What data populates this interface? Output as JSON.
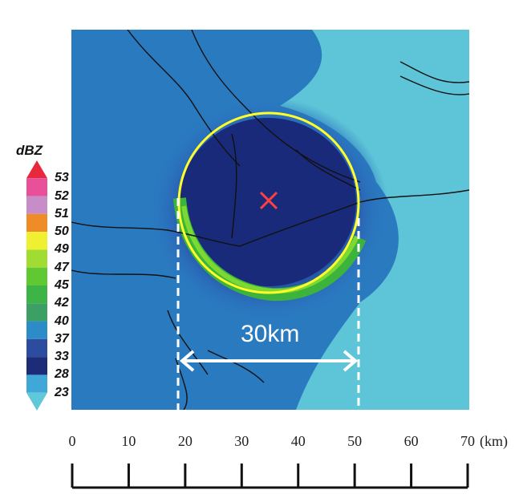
{
  "legend": {
    "title": "dBZ",
    "levels": [
      "53",
      "52",
      "51",
      "50",
      "49",
      "47",
      "45",
      "42",
      "40",
      "37",
      "33",
      "28",
      "23"
    ],
    "colors": [
      "#e8283c",
      "#e8509a",
      "#c88cc8",
      "#f08c28",
      "#f0f032",
      "#a0dc32",
      "#60c832",
      "#3cb446",
      "#3ca064",
      "#2c8cc8",
      "#2c4ca0",
      "#1c2c78",
      "#40a8d8",
      "#60c8d8"
    ]
  },
  "map": {
    "circle_color": "#ffff2a",
    "center_marker_color": "#ff4040",
    "distance_label": "30km",
    "colors": {
      "outer": "#5ec4d8",
      "mid": "#2a7ac0",
      "inner": "#203c8c",
      "core": "#1a2a7a",
      "ring_green": "#3cb43c",
      "ring_lightgreen": "#7cd832",
      "coast": "#111111"
    }
  },
  "scale": {
    "ticks": [
      "0",
      "10",
      "20",
      "30",
      "40",
      "50",
      "60",
      "70"
    ],
    "unit": "(km)"
  }
}
